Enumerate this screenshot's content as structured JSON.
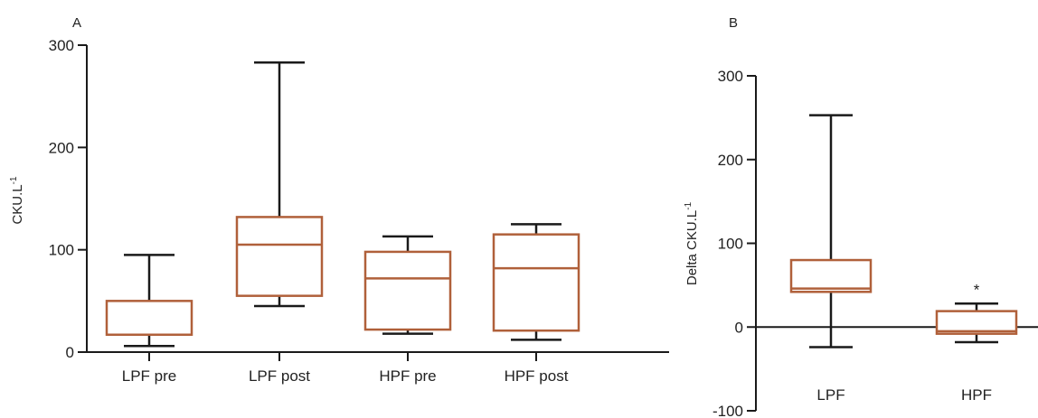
{
  "chart_data": [
    {
      "type": "boxplot",
      "panel_label": "A",
      "title": "",
      "xlabel": "",
      "ylabel": "CKU.L",
      "ylabel_superscript": "-1",
      "ylim": [
        0,
        300
      ],
      "yticks": [
        0,
        100,
        200,
        300
      ],
      "categories": [
        "LPF pre",
        "LPF post",
        "HPF pre",
        "HPF post"
      ],
      "boxes": [
        {
          "category": "LPF pre",
          "min": 6,
          "q1": 17,
          "median": 17,
          "q3": 50,
          "max": 95
        },
        {
          "category": "LPF post",
          "min": 45,
          "q1": 55,
          "median": 105,
          "q3": 132,
          "max": 283
        },
        {
          "category": "HPF pre",
          "min": 18,
          "q1": 22,
          "median": 72,
          "q3": 98,
          "max": 113
        },
        {
          "category": "HPF post",
          "min": 12,
          "q1": 21,
          "median": 82,
          "q3": 115,
          "max": 125
        }
      ],
      "colors": {
        "box": "#b0603a",
        "whisker": "#1a1a1a",
        "axis": "#1a1a1a"
      }
    },
    {
      "type": "boxplot",
      "panel_label": "B",
      "title": "",
      "xlabel": "",
      "ylabel": "Delta CKU.L",
      "ylabel_superscript": "-1",
      "ylim": [
        -100,
        300
      ],
      "yticks": [
        -100,
        0,
        100,
        200,
        300
      ],
      "categories": [
        "LPF",
        "HPF"
      ],
      "boxes": [
        {
          "category": "LPF",
          "min": -24,
          "q1": 42,
          "median": 46,
          "q3": 80,
          "max": 253,
          "annotation": ""
        },
        {
          "category": "HPF",
          "min": -18,
          "q1": -8,
          "median": -5,
          "q3": 19,
          "max": 28,
          "annotation": "*"
        }
      ],
      "colors": {
        "box": "#b0603a",
        "whisker": "#1a1a1a",
        "axis": "#1a1a1a"
      }
    }
  ]
}
